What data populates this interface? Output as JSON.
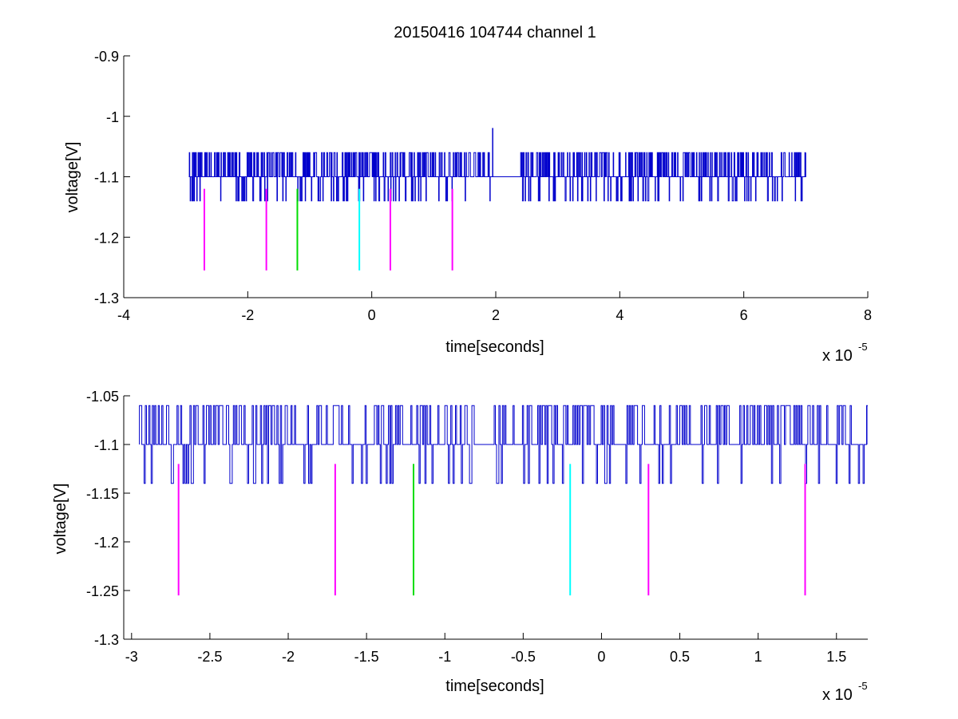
{
  "chart_data": [
    {
      "type": "line",
      "title": "20150416 104744 channel 1",
      "xlabel": "time[seconds]",
      "ylabel": "voltage[V]",
      "x_exponent_label": "x 10",
      "x_exponent_value": "-5",
      "x_scale": 1e-05,
      "xlim": [
        -4,
        8
      ],
      "ylim": [
        -1.3,
        -0.9
      ],
      "xticks": [
        -4,
        -2,
        0,
        2,
        4,
        6,
        8
      ],
      "xtick_labels": [
        "-4",
        "-2",
        "0",
        "2",
        "4",
        "6",
        "8"
      ],
      "yticks": [
        -1.3,
        -1.2,
        -1.1,
        -1.0,
        -0.9
      ],
      "ytick_labels": [
        "-1.3",
        "-1.2",
        "-1.1",
        "-1",
        "-0.9"
      ],
      "grid": false,
      "series": [
        {
          "color": "#0000cc",
          "x_range": [
            -2.95,
            7.0
          ],
          "levels": [
            -1.06,
            -1.1,
            -1.14
          ],
          "spike": {
            "x": 1.95,
            "y": -1.02
          }
        }
      ],
      "markers": [
        {
          "x": -2.7,
          "y_top": -1.12,
          "y_bottom": -1.255,
          "color": "#ff00ff"
        },
        {
          "x": -1.7,
          "y_top": -1.12,
          "y_bottom": -1.255,
          "color": "#ff00ff"
        },
        {
          "x": -1.2,
          "y_top": -1.12,
          "y_bottom": -1.255,
          "color": "#00dd00"
        },
        {
          "x": -0.2,
          "y_top": -1.12,
          "y_bottom": -1.255,
          "color": "#00ffff"
        },
        {
          "x": 0.3,
          "y_top": -1.12,
          "y_bottom": -1.255,
          "color": "#ff00ff"
        },
        {
          "x": 1.3,
          "y_top": -1.12,
          "y_bottom": -1.255,
          "color": "#ff00ff"
        }
      ]
    },
    {
      "type": "line",
      "title": "",
      "xlabel": "time[seconds]",
      "ylabel": "voltage[V]",
      "x_exponent_label": "x 10",
      "x_exponent_value": "-5",
      "x_scale": 1e-05,
      "xlim": [
        -3.05,
        1.7
      ],
      "ylim": [
        -1.3,
        -1.05
      ],
      "xticks": [
        -3,
        -2.5,
        -2,
        -1.5,
        -1,
        -0.5,
        0,
        0.5,
        1,
        1.5
      ],
      "xtick_labels": [
        "-3",
        "-2.5",
        "-2",
        "-1.5",
        "-1",
        "-0.5",
        "0",
        "0.5",
        "1",
        "1.5"
      ],
      "yticks": [
        -1.3,
        -1.25,
        -1.2,
        -1.15,
        -1.1,
        -1.05
      ],
      "ytick_labels": [
        "-1.3",
        "-1.25",
        "-1.2",
        "-1.15",
        "-1.1",
        "-1.05"
      ],
      "grid": false,
      "series": [
        {
          "color": "#0000cc",
          "x_range": [
            -2.95,
            1.7
          ],
          "levels": [
            -1.06,
            -1.1,
            -1.14
          ]
        }
      ],
      "markers": [
        {
          "x": -2.7,
          "y_top": -1.12,
          "y_bottom": -1.255,
          "color": "#ff00ff"
        },
        {
          "x": -1.7,
          "y_top": -1.12,
          "y_bottom": -1.255,
          "color": "#ff00ff"
        },
        {
          "x": -1.2,
          "y_top": -1.12,
          "y_bottom": -1.255,
          "color": "#00dd00"
        },
        {
          "x": -0.2,
          "y_top": -1.12,
          "y_bottom": -1.255,
          "color": "#00ffff"
        },
        {
          "x": 0.3,
          "y_top": -1.12,
          "y_bottom": -1.255,
          "color": "#ff00ff"
        },
        {
          "x": 1.3,
          "y_top": -1.12,
          "y_bottom": -1.255,
          "color": "#ff00ff"
        }
      ]
    }
  ]
}
